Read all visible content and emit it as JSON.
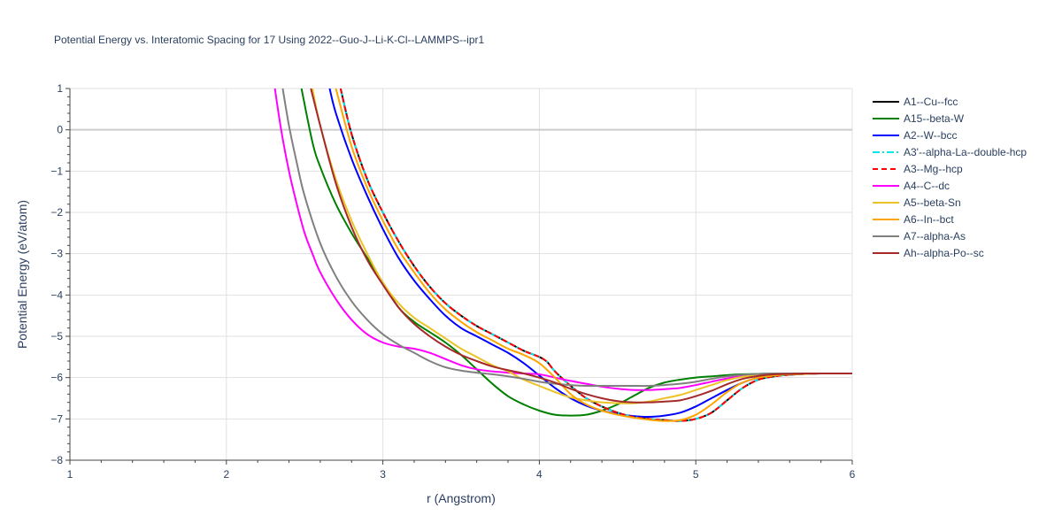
{
  "chart_data": {
    "type": "line",
    "title": "Potential Energy vs. Interatomic Spacing for 17 Using 2022--Guo-J--Li-K-Cl--LAMMPS--ipr1",
    "xlabel": "r (Angstrom)",
    "ylabel": "Potential Energy (eV/atom)",
    "xlim": [
      1,
      6
    ],
    "ylim": [
      -8,
      1
    ],
    "xticks": [
      1,
      2,
      3,
      4,
      5,
      6
    ],
    "yticks": [
      1,
      0,
      -1,
      -2,
      -3,
      -4,
      -5,
      -6,
      -7,
      -8
    ],
    "xtick_labels": [
      "1",
      "2",
      "3",
      "4",
      "5",
      "6"
    ],
    "ytick_labels": [
      "1",
      "0",
      "−1",
      "−2",
      "−3",
      "−4",
      "−5",
      "−6",
      "−7",
      "−8"
    ],
    "grid": true,
    "legend_position": "right",
    "series": [
      {
        "name": "A1--Cu--fcc",
        "color": "#000000",
        "dash": "solid",
        "x": [
          2.73,
          2.8,
          2.9,
          3.0,
          3.1,
          3.2,
          3.3,
          3.4,
          3.5,
          3.6,
          3.7,
          3.8,
          3.9,
          4.0,
          4.05,
          4.1,
          4.2,
          4.3,
          4.4,
          4.5,
          4.6,
          4.7,
          4.8,
          4.9,
          5.0,
          5.1,
          5.2,
          5.3,
          5.4,
          5.5,
          5.6,
          5.7,
          5.8,
          5.9,
          6.0
        ],
        "y": [
          1.0,
          -0.1,
          -1.2,
          -2.0,
          -2.7,
          -3.3,
          -3.8,
          -4.2,
          -4.5,
          -4.75,
          -4.95,
          -5.15,
          -5.35,
          -5.5,
          -5.62,
          -5.85,
          -6.2,
          -6.5,
          -6.7,
          -6.85,
          -6.95,
          -7.0,
          -7.03,
          -7.05,
          -7.0,
          -6.85,
          -6.55,
          -6.25,
          -6.05,
          -5.97,
          -5.93,
          -5.91,
          -5.9,
          -5.9,
          -5.9
        ]
      },
      {
        "name": "A15--beta-W",
        "color": "#008000",
        "dash": "solid",
        "x": [
          2.48,
          2.55,
          2.6,
          2.7,
          2.8,
          2.9,
          3.0,
          3.1,
          3.2,
          3.3,
          3.4,
          3.5,
          3.6,
          3.7,
          3.8,
          3.9,
          4.0,
          4.1,
          4.2,
          4.3,
          4.4,
          4.5,
          4.6,
          4.7,
          4.8,
          4.9,
          5.0,
          5.1,
          5.2,
          5.3,
          5.4,
          5.5,
          5.6,
          5.7,
          5.8,
          5.9,
          6.0
        ],
        "y": [
          1.0,
          -0.3,
          -0.9,
          -1.8,
          -2.5,
          -3.1,
          -3.7,
          -4.3,
          -4.65,
          -4.9,
          -5.15,
          -5.45,
          -5.8,
          -6.15,
          -6.45,
          -6.65,
          -6.8,
          -6.9,
          -6.92,
          -6.9,
          -6.8,
          -6.65,
          -6.45,
          -6.25,
          -6.12,
          -6.05,
          -6.0,
          -5.97,
          -5.94,
          -5.92,
          -5.91,
          -5.9,
          -5.9,
          -5.9,
          -5.9,
          -5.9,
          -5.9
        ]
      },
      {
        "name": "A2--W--bcc",
        "color": "#0000ff",
        "dash": "solid",
        "x": [
          2.66,
          2.7,
          2.8,
          2.9,
          3.0,
          3.1,
          3.2,
          3.3,
          3.4,
          3.5,
          3.6,
          3.7,
          3.8,
          3.9,
          4.0,
          4.1,
          4.2,
          4.3,
          4.4,
          4.5,
          4.6,
          4.7,
          4.8,
          4.9,
          5.0,
          5.1,
          5.2,
          5.3,
          5.4,
          5.5,
          5.6,
          5.7,
          5.8,
          5.9,
          6.0
        ],
        "y": [
          1.0,
          0.4,
          -0.7,
          -1.6,
          -2.4,
          -3.1,
          -3.65,
          -4.1,
          -4.5,
          -4.8,
          -5.0,
          -5.2,
          -5.4,
          -5.65,
          -5.95,
          -6.25,
          -6.5,
          -6.68,
          -6.8,
          -6.88,
          -6.93,
          -6.95,
          -6.92,
          -6.85,
          -6.7,
          -6.5,
          -6.3,
          -6.12,
          -6.0,
          -5.95,
          -5.92,
          -5.91,
          -5.9,
          -5.9,
          -5.9
        ]
      },
      {
        "name": "A3'--alpha-La--double-hcp",
        "color": "#00e5ee",
        "dash": "dashdot",
        "x": [
          2.73,
          2.8,
          2.9,
          3.0,
          3.1,
          3.2,
          3.3,
          3.4,
          3.5,
          3.6,
          3.7,
          3.8,
          3.9,
          4.0,
          4.05,
          4.1,
          4.2,
          4.3,
          4.4,
          4.5,
          4.6,
          4.7,
          4.8,
          4.9,
          5.0,
          5.1,
          5.2,
          5.3,
          5.4,
          5.5,
          5.6,
          5.7,
          5.8,
          5.9,
          6.0
        ],
        "y": [
          1.0,
          -0.1,
          -1.2,
          -2.0,
          -2.7,
          -3.3,
          -3.8,
          -4.2,
          -4.5,
          -4.75,
          -4.95,
          -5.15,
          -5.35,
          -5.5,
          -5.62,
          -5.85,
          -6.2,
          -6.5,
          -6.7,
          -6.85,
          -6.95,
          -7.0,
          -7.03,
          -7.05,
          -7.0,
          -6.85,
          -6.55,
          -6.25,
          -6.05,
          -5.97,
          -5.93,
          -5.91,
          -5.9,
          -5.9,
          -5.9
        ]
      },
      {
        "name": "A3--Mg--hcp",
        "color": "#ff0000",
        "dash": "dash",
        "x": [
          2.73,
          2.8,
          2.9,
          3.0,
          3.1,
          3.2,
          3.3,
          3.4,
          3.5,
          3.6,
          3.7,
          3.8,
          3.9,
          4.0,
          4.05,
          4.1,
          4.2,
          4.3,
          4.4,
          4.5,
          4.6,
          4.7,
          4.8,
          4.9,
          5.0,
          5.1,
          5.2,
          5.3,
          5.4,
          5.5,
          5.6,
          5.7,
          5.8,
          5.9,
          6.0
        ],
        "y": [
          1.0,
          -0.1,
          -1.2,
          -2.0,
          -2.7,
          -3.3,
          -3.8,
          -4.2,
          -4.5,
          -4.75,
          -4.95,
          -5.15,
          -5.35,
          -5.5,
          -5.62,
          -5.85,
          -6.2,
          -6.5,
          -6.7,
          -6.85,
          -6.95,
          -7.0,
          -7.03,
          -7.05,
          -7.0,
          -6.85,
          -6.55,
          -6.25,
          -6.05,
          -5.97,
          -5.93,
          -5.91,
          -5.9,
          -5.9,
          -5.9
        ]
      },
      {
        "name": "A4--C--dc",
        "color": "#ff00ff",
        "dash": "solid",
        "x": [
          2.31,
          2.35,
          2.4,
          2.45,
          2.5,
          2.55,
          2.6,
          2.7,
          2.8,
          2.9,
          3.0,
          3.1,
          3.2,
          3.3,
          3.4,
          3.5,
          3.6,
          3.7,
          3.8,
          3.9,
          4.0,
          4.1,
          4.2,
          4.3,
          4.4,
          4.5,
          4.6,
          4.7,
          4.8,
          4.9,
          5.0,
          5.1,
          5.2,
          5.3,
          5.4,
          5.5,
          5.6,
          5.7,
          5.8,
          5.9,
          6.0
        ],
        "y": [
          1.0,
          0.0,
          -1.0,
          -1.8,
          -2.5,
          -3.0,
          -3.45,
          -4.1,
          -4.6,
          -4.95,
          -5.15,
          -5.25,
          -5.3,
          -5.4,
          -5.55,
          -5.7,
          -5.8,
          -5.85,
          -5.88,
          -5.9,
          -5.92,
          -6.0,
          -6.08,
          -6.15,
          -6.22,
          -6.27,
          -6.3,
          -6.3,
          -6.28,
          -6.25,
          -6.18,
          -6.1,
          -6.02,
          -5.96,
          -5.93,
          -5.91,
          -5.9,
          -5.9,
          -5.9,
          -5.9,
          -5.9
        ]
      },
      {
        "name": "A5--beta-Sn",
        "color": "#ebc326",
        "dash": "solid",
        "x": [
          2.55,
          2.6,
          2.7,
          2.8,
          2.9,
          3.0,
          3.1,
          3.2,
          3.3,
          3.4,
          3.5,
          3.6,
          3.7,
          3.8,
          3.9,
          4.0,
          4.1,
          4.2,
          4.3,
          4.4,
          4.5,
          4.6,
          4.7,
          4.8,
          4.9,
          5.0,
          5.1,
          5.2,
          5.3,
          5.4,
          5.5,
          5.6,
          5.7,
          5.8,
          5.9,
          6.0
        ],
        "y": [
          1.0,
          0.1,
          -1.2,
          -2.2,
          -3.0,
          -3.7,
          -4.2,
          -4.55,
          -4.8,
          -5.05,
          -5.3,
          -5.5,
          -5.7,
          -5.85,
          -6.05,
          -6.2,
          -6.35,
          -6.48,
          -6.55,
          -6.6,
          -6.62,
          -6.62,
          -6.58,
          -6.5,
          -6.42,
          -6.3,
          -6.18,
          -6.06,
          -5.98,
          -5.94,
          -5.92,
          -5.91,
          -5.9,
          -5.9,
          -5.9,
          -5.9
        ]
      },
      {
        "name": "A6--In--bct",
        "color": "#ffa500",
        "dash": "solid",
        "x": [
          2.7,
          2.8,
          2.9,
          3.0,
          3.1,
          3.2,
          3.3,
          3.4,
          3.5,
          3.6,
          3.7,
          3.8,
          3.9,
          4.0,
          4.1,
          4.2,
          4.3,
          4.4,
          4.5,
          4.6,
          4.7,
          4.8,
          4.9,
          5.0,
          5.1,
          5.2,
          5.3,
          5.4,
          5.5,
          5.6,
          5.7,
          5.8,
          5.9,
          6.0
        ],
        "y": [
          1.0,
          -0.4,
          -1.4,
          -2.2,
          -2.9,
          -3.45,
          -3.95,
          -4.35,
          -4.65,
          -4.9,
          -5.1,
          -5.3,
          -5.45,
          -5.65,
          -6.0,
          -6.4,
          -6.65,
          -6.8,
          -6.9,
          -6.97,
          -7.02,
          -7.05,
          -7.03,
          -6.9,
          -6.65,
          -6.35,
          -6.12,
          -6.0,
          -5.95,
          -5.92,
          -5.91,
          -5.9,
          -5.9,
          -5.9
        ]
      },
      {
        "name": "A7--alpha-As",
        "color": "#808080",
        "dash": "solid",
        "x": [
          2.36,
          2.4,
          2.45,
          2.5,
          2.6,
          2.7,
          2.8,
          2.9,
          3.0,
          3.1,
          3.2,
          3.3,
          3.4,
          3.5,
          3.6,
          3.7,
          3.8,
          3.9,
          4.0,
          4.1,
          4.2,
          4.3,
          4.4,
          4.5,
          4.6,
          4.7,
          4.8,
          4.9,
          5.0,
          5.1,
          5.2,
          5.3,
          5.4,
          5.5,
          5.6,
          5.7,
          5.8,
          5.9,
          6.0
        ],
        "y": [
          1.0,
          0.1,
          -0.8,
          -1.6,
          -2.75,
          -3.55,
          -4.15,
          -4.6,
          -4.95,
          -5.2,
          -5.4,
          -5.6,
          -5.75,
          -5.83,
          -5.88,
          -5.92,
          -5.97,
          -6.03,
          -6.1,
          -6.15,
          -6.18,
          -6.2,
          -6.2,
          -6.2,
          -6.2,
          -6.2,
          -6.18,
          -6.15,
          -6.1,
          -6.03,
          -5.97,
          -5.93,
          -5.91,
          -5.9,
          -5.9,
          -5.9,
          -5.9,
          -5.9,
          -5.9
        ]
      },
      {
        "name": "Ah--alpha-Po--sc",
        "color": "#a52a2a",
        "dash": "solid",
        "x": [
          2.54,
          2.6,
          2.7,
          2.8,
          2.9,
          3.0,
          3.1,
          3.2,
          3.3,
          3.4,
          3.5,
          3.6,
          3.7,
          3.8,
          3.9,
          4.0,
          4.1,
          4.2,
          4.3,
          4.4,
          4.5,
          4.6,
          4.7,
          4.8,
          4.9,
          5.0,
          5.1,
          5.2,
          5.3,
          5.4,
          5.5,
          5.6,
          5.7,
          5.8,
          5.9,
          6.0
        ],
        "y": [
          1.0,
          0.1,
          -1.3,
          -2.35,
          -3.15,
          -3.75,
          -4.3,
          -4.7,
          -5.0,
          -5.25,
          -5.45,
          -5.6,
          -5.73,
          -5.82,
          -5.9,
          -6.0,
          -6.12,
          -6.27,
          -6.4,
          -6.5,
          -6.57,
          -6.6,
          -6.6,
          -6.58,
          -6.55,
          -6.45,
          -6.32,
          -6.16,
          -6.03,
          -5.96,
          -5.92,
          -5.91,
          -5.9,
          -5.9,
          -5.9,
          -5.9
        ]
      }
    ]
  }
}
